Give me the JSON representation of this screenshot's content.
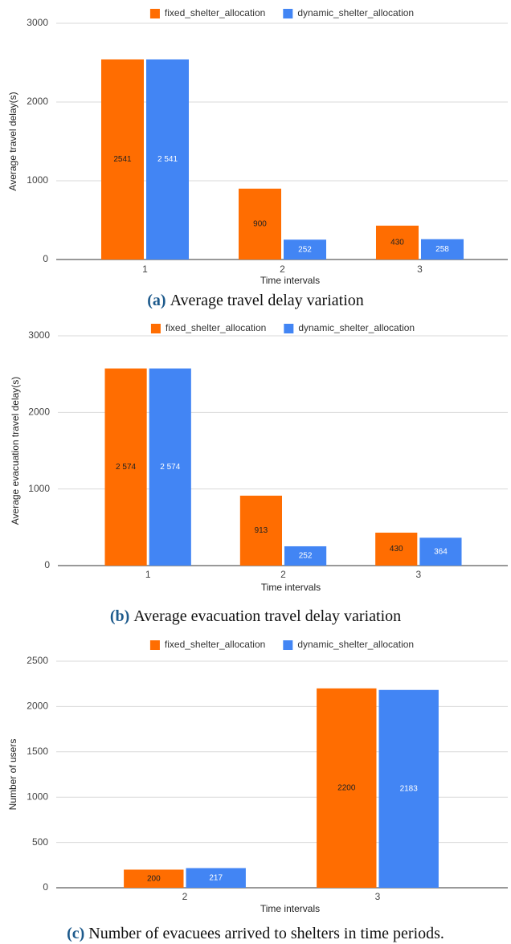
{
  "chart_data": [
    {
      "type": "bar",
      "caption_label": "(a)",
      "caption": "Average travel delay variation",
      "x_label": "Time intervals",
      "y_label": "Average travel delay(s)",
      "categories": [
        "1",
        "2",
        "3"
      ],
      "series": [
        {
          "name": "fixed_shelter_allocation",
          "color": "#ff6d01",
          "values": [
            2541,
            900,
            430
          ],
          "value_labels": [
            "2541",
            "900",
            "430"
          ]
        },
        {
          "name": "dynamic_shelter_allocation",
          "color": "#4285f4",
          "values": [
            2541,
            252,
            258
          ],
          "value_labels": [
            "2 541",
            "252",
            "258"
          ]
        }
      ],
      "ylim": [
        0,
        3000
      ],
      "yticks": [
        0,
        1000,
        2000,
        3000
      ],
      "grid": true,
      "legend": "top"
    },
    {
      "type": "bar",
      "caption_label": "(b)",
      "caption": "Average evacuation travel delay variation",
      "x_label": "Time intervals",
      "y_label": "Average evacuation travel delay(s)",
      "categories": [
        "1",
        "2",
        "3"
      ],
      "series": [
        {
          "name": "fixed_shelter_allocation",
          "color": "#ff6d01",
          "values": [
            2574,
            913,
            430
          ],
          "value_labels": [
            "2 574",
            "913",
            "430"
          ]
        },
        {
          "name": "dynamic_shelter_allocation",
          "color": "#4285f4",
          "values": [
            2574,
            252,
            364
          ],
          "value_labels": [
            "2 574",
            "252",
            "364"
          ]
        }
      ],
      "ylim": [
        0,
        3000
      ],
      "yticks": [
        0,
        1000,
        2000,
        3000
      ],
      "grid": true,
      "legend": "top"
    },
    {
      "type": "bar",
      "caption_label": "(c)",
      "caption": "Number of evacuees arrived to shelters in time periods.",
      "x_label": "Time intervals",
      "y_label": "Number of users",
      "categories": [
        "2",
        "3"
      ],
      "series": [
        {
          "name": "fixed_shelter_allocation",
          "color": "#ff6d01",
          "values": [
            200,
            2200
          ]
        },
        {
          "name": "dynamic_shelter_allocation",
          "color": "#4285f4",
          "values": [
            217,
            2183
          ]
        }
      ],
      "ylim": [
        0,
        2500
      ],
      "yticks": [
        0,
        500,
        1000,
        1500,
        2000,
        2500
      ],
      "grid": true,
      "legend": "top"
    }
  ]
}
